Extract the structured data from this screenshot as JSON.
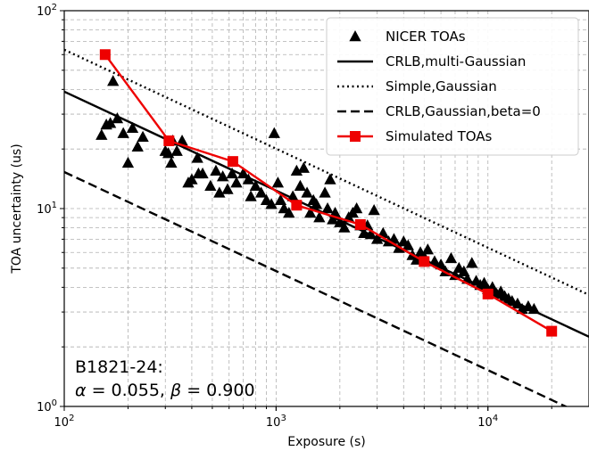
{
  "chart_data": {
    "type": "scatter",
    "xlabel": "Exposure (s)",
    "ylabel": "TOA uncertainty (us)",
    "xscale": "log",
    "yscale": "log",
    "xlim": [
      100,
      30000
    ],
    "ylim": [
      1,
      100
    ],
    "grid": true,
    "legend_position": "top-right",
    "x_ticks": [
      {
        "value": 100,
        "base": "10",
        "exp": "2"
      },
      {
        "value": 1000,
        "base": "10",
        "exp": "3"
      },
      {
        "value": 10000,
        "base": "10",
        "exp": "4"
      }
    ],
    "y_ticks": [
      {
        "value": 1,
        "base": "10",
        "exp": "0"
      },
      {
        "value": 10,
        "base": "10",
        "exp": "1"
      },
      {
        "value": 100,
        "base": "10",
        "exp": "2"
      }
    ],
    "annotation": {
      "line1": "B1821-24:",
      "line2_alpha_symbol": "α",
      "line2_alpha_value": " = 0.055, ",
      "line2_beta_symbol": "β",
      "line2_beta_value": " = 0.900"
    },
    "series": [
      {
        "name": "NICER TOAs",
        "kind": "scatter",
        "marker": "triangle",
        "color": "#000000",
        "points": [
          [
            150,
            23.5
          ],
          [
            158,
            26.5
          ],
          [
            165,
            27
          ],
          [
            170,
            44
          ],
          [
            178,
            28.5
          ],
          [
            190,
            24
          ],
          [
            200,
            17
          ],
          [
            210,
            25.5
          ],
          [
            222,
            20.5
          ],
          [
            235,
            23
          ],
          [
            300,
            19.5
          ],
          [
            310,
            19
          ],
          [
            320,
            17
          ],
          [
            325,
            22
          ],
          [
            340,
            19.5
          ],
          [
            360,
            22
          ],
          [
            385,
            13.5
          ],
          [
            400,
            14
          ],
          [
            425,
            18
          ],
          [
            430,
            15
          ],
          [
            450,
            15
          ],
          [
            490,
            13
          ],
          [
            520,
            15.5
          ],
          [
            540,
            12
          ],
          [
            560,
            14.5
          ],
          [
            590,
            12.5
          ],
          [
            620,
            15
          ],
          [
            650,
            13.5
          ],
          [
            700,
            15
          ],
          [
            740,
            14
          ],
          [
            760,
            11.5
          ],
          [
            800,
            13
          ],
          [
            850,
            12
          ],
          [
            900,
            11
          ],
          [
            950,
            10.5
          ],
          [
            980,
            24
          ],
          [
            1020,
            13.5
          ],
          [
            1050,
            11
          ],
          [
            1090,
            10
          ],
          [
            1150,
            9.5
          ],
          [
            1200,
            11.5
          ],
          [
            1250,
            15.5
          ],
          [
            1300,
            13
          ],
          [
            1350,
            16
          ],
          [
            1400,
            12
          ],
          [
            1450,
            9.5
          ],
          [
            1500,
            11
          ],
          [
            1550,
            10.5
          ],
          [
            1600,
            9
          ],
          [
            1700,
            12
          ],
          [
            1750,
            10
          ],
          [
            1800,
            14
          ],
          [
            1850,
            8.8
          ],
          [
            1900,
            9.5
          ],
          [
            2000,
            8.5
          ],
          [
            2100,
            8
          ],
          [
            2200,
            9
          ],
          [
            2300,
            9.5
          ],
          [
            2400,
            10
          ],
          [
            2500,
            8.2
          ],
          [
            2600,
            7.5
          ],
          [
            2700,
            8.2
          ],
          [
            2800,
            7.4
          ],
          [
            2900,
            9.8
          ],
          [
            3000,
            7
          ],
          [
            3200,
            7.5
          ],
          [
            3400,
            6.8
          ],
          [
            3600,
            7
          ],
          [
            3800,
            6.3
          ],
          [
            4000,
            6.8
          ],
          [
            4200,
            6.5
          ],
          [
            4400,
            5.8
          ],
          [
            4600,
            5.5
          ],
          [
            4800,
            6
          ],
          [
            5000,
            5.7
          ],
          [
            5200,
            6.2
          ],
          [
            5600,
            5.4
          ],
          [
            6000,
            5.2
          ],
          [
            6300,
            4.8
          ],
          [
            6700,
            5.6
          ],
          [
            7000,
            4.6
          ],
          [
            7300,
            5
          ],
          [
            7700,
            4.8
          ],
          [
            8000,
            4.4
          ],
          [
            8400,
            5.3
          ],
          [
            8800,
            4.3
          ],
          [
            9200,
            4.1
          ],
          [
            9600,
            4.2
          ],
          [
            10000,
            3.9
          ],
          [
            10500,
            4
          ],
          [
            11000,
            3.7
          ],
          [
            11500,
            3.8
          ],
          [
            12000,
            3.6
          ],
          [
            12500,
            3.5
          ],
          [
            13000,
            3.4
          ],
          [
            13800,
            3.3
          ],
          [
            14500,
            3.1
          ],
          [
            15500,
            3.2
          ],
          [
            16500,
            3.1
          ]
        ]
      },
      {
        "name": "CRLB,multi-Gaussian",
        "kind": "line",
        "dash": "solid",
        "color": "#000000",
        "points": [
          [
            100,
            39
          ],
          [
            30000,
            2.25
          ]
        ]
      },
      {
        "name": "Simple,Gaussian",
        "kind": "line",
        "dash": "dotted",
        "color": "#000000",
        "points": [
          [
            100,
            63.5
          ],
          [
            30000,
            3.66
          ]
        ]
      },
      {
        "name": "CRLB,Gaussian,beta=0",
        "kind": "line",
        "dash": "dashed",
        "color": "#000000",
        "points": [
          [
            100,
            15.3
          ],
          [
            30000,
            0.88
          ]
        ]
      },
      {
        "name": "Simulated TOAs",
        "kind": "line-marker",
        "marker": "square",
        "color": "#ee0000",
        "points": [
          [
            156,
            60
          ],
          [
            312,
            22
          ],
          [
            625,
            17.3
          ],
          [
            1250,
            10.4
          ],
          [
            2500,
            8.3
          ],
          [
            5000,
            5.4
          ],
          [
            10000,
            3.7
          ],
          [
            20000,
            2.4
          ]
        ]
      }
    ]
  }
}
